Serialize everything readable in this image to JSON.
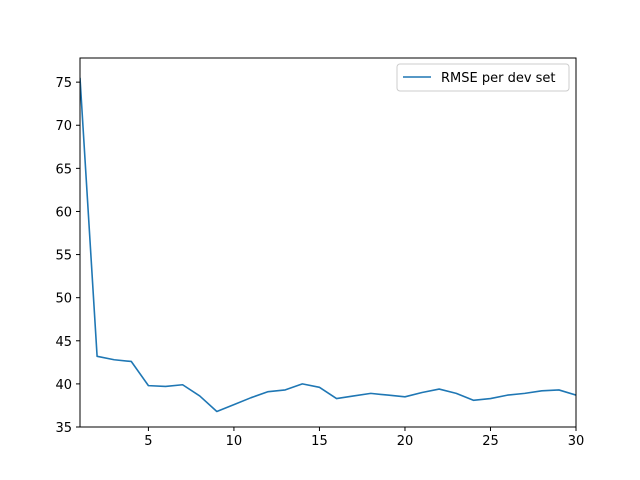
{
  "chart_data": {
    "type": "line",
    "title": "",
    "xlabel": "",
    "ylabel": "",
    "xlim": [
      1,
      30
    ],
    "ylim": [
      35,
      77.8
    ],
    "x_ticks": [
      5,
      10,
      15,
      20,
      25,
      30
    ],
    "y_ticks": [
      35,
      40,
      45,
      50,
      55,
      60,
      65,
      70,
      75
    ],
    "grid": false,
    "legend_position": "top-right",
    "series": [
      {
        "name": "RMSE per dev set",
        "color": "#1f77b4",
        "x": [
          1,
          2,
          3,
          4,
          5,
          6,
          7,
          8,
          9,
          10,
          11,
          12,
          13,
          14,
          15,
          16,
          17,
          18,
          19,
          20,
          21,
          22,
          23,
          24,
          25,
          26,
          27,
          28,
          29,
          30
        ],
        "y": [
          75.5,
          43.2,
          42.8,
          42.6,
          39.8,
          39.7,
          39.9,
          38.6,
          36.8,
          37.6,
          38.4,
          39.1,
          39.3,
          40.0,
          39.6,
          38.3,
          38.6,
          38.9,
          38.7,
          38.5,
          39.0,
          39.4,
          38.9,
          38.1,
          38.3,
          38.7,
          38.9,
          39.2,
          39.3,
          38.7
        ]
      }
    ]
  }
}
